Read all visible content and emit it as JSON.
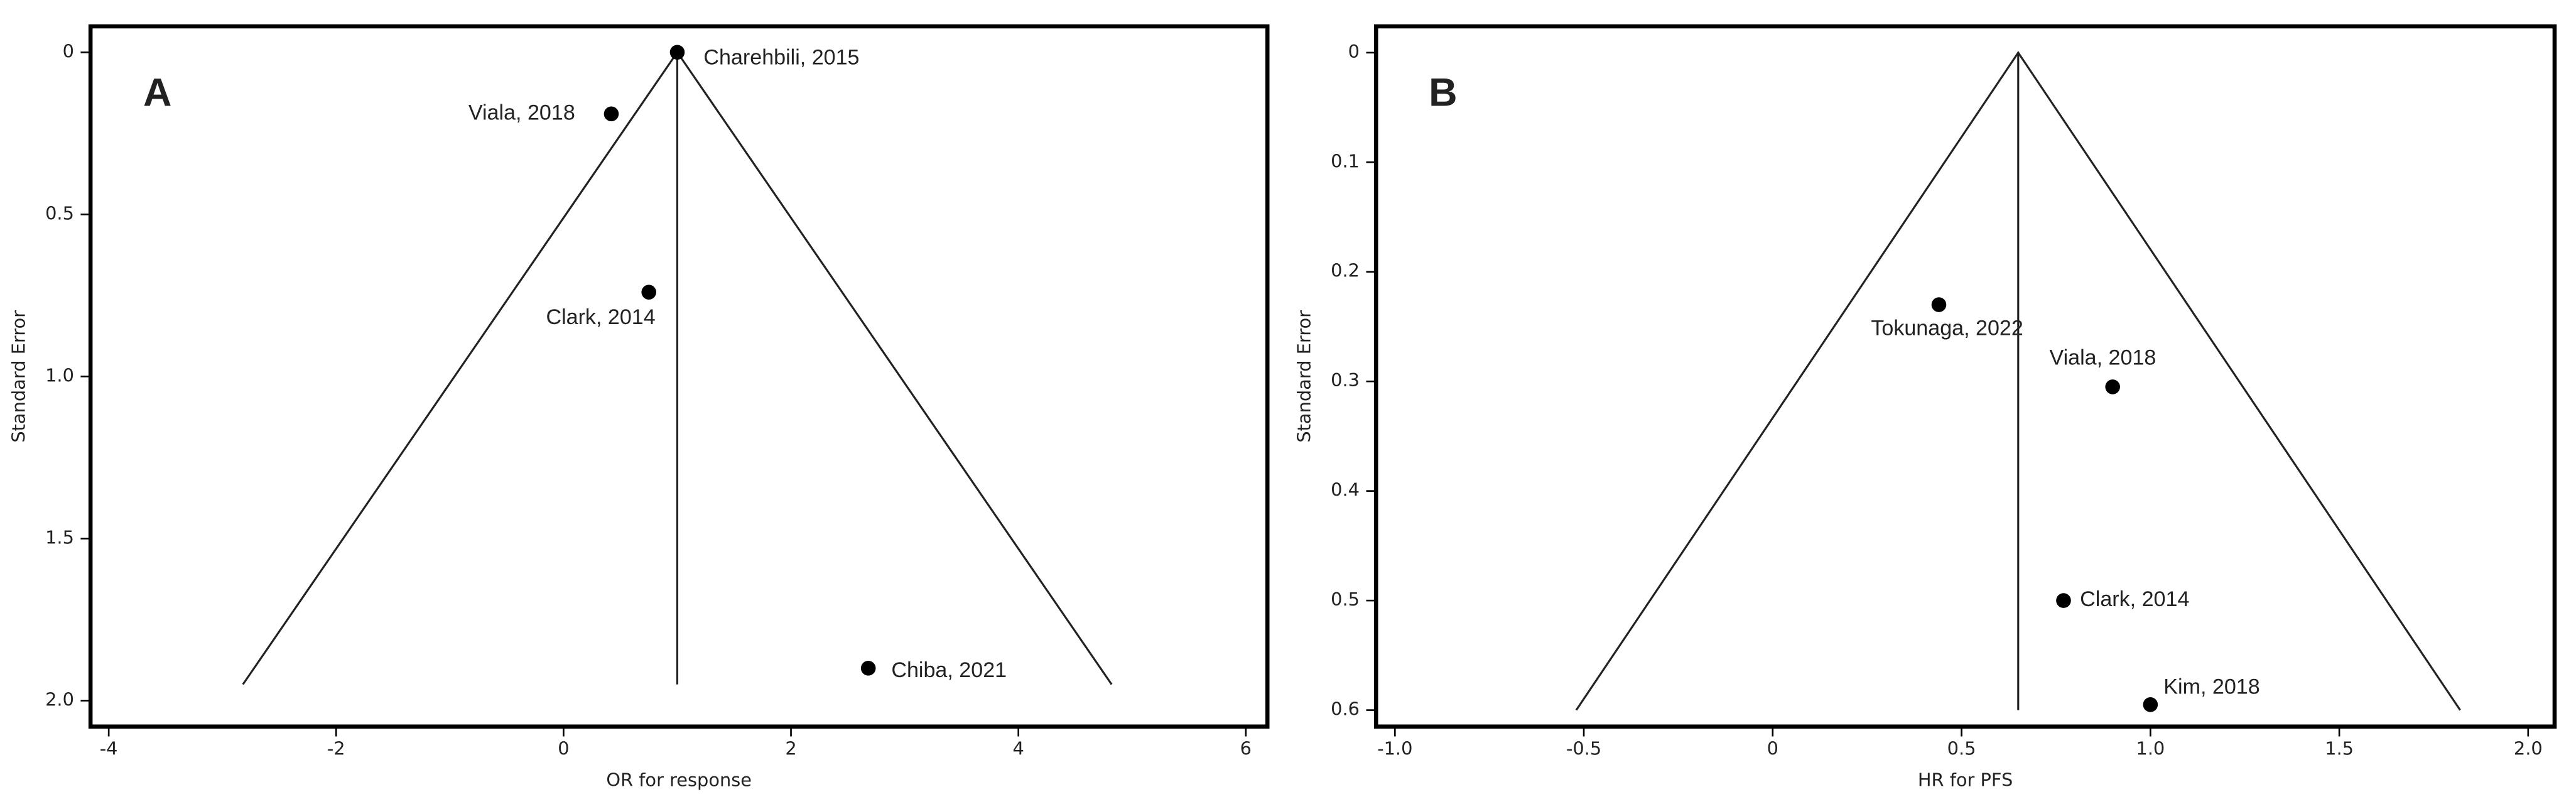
{
  "chart_data": [
    {
      "type": "scatter",
      "panel_label": "A",
      "x_label": "OR for response",
      "y_label": "Standard Error",
      "xlim": [
        -4.16,
        6.19
      ],
      "ylim": [
        -0.08,
        2.08
      ],
      "y_reversed": true,
      "color": "#000000",
      "xticks": [
        -4,
        -2,
        0,
        2,
        4,
        6
      ],
      "yticks": [
        0,
        0.5,
        {
          "value": 1,
          "label": "1.0"
        },
        1.5,
        {
          "value": 2,
          "label": "2.0"
        }
      ],
      "series": [
        {
          "names": [
            "Charehbili, 2015",
            "Viala, 2018",
            "Clark, 2014",
            "Chiba, 2021"
          ],
          "x": [
            1.0,
            0.42,
            0.75,
            2.68
          ],
          "values": [
            0.0,
            0.19,
            0.74,
            1.9
          ]
        }
      ],
      "funnel": {
        "x": [
          -2.82,
          1.0,
          4.82
        ],
        "y": [
          1.95,
          0,
          1.95
        ]
      },
      "summary": {
        "x": [
          1.0,
          1.0
        ],
        "y": [
          0,
          1.95
        ]
      }
    },
    {
      "type": "scatter",
      "panel_label": "B",
      "x_label": "HR for PFS",
      "y_label": "Standard Error",
      "xlim": [
        -1.05,
        2.07
      ],
      "ylim": [
        -0.024,
        0.615
      ],
      "y_reversed": true,
      "color": "#000000",
      "xticks": [
        {
          "value": -1,
          "label": "-1.0"
        },
        -0.5,
        0,
        0.5,
        {
          "value": 1,
          "label": "1.0"
        },
        1.5,
        {
          "value": 2,
          "label": "2.0"
        }
      ],
      "yticks": [
        0,
        0.1,
        0.2,
        0.3,
        0.4,
        0.5,
        0.6
      ],
      "series": [
        {
          "names": [
            "Tokunaga, 2022",
            "Viala, 2018",
            "Clark, 2014",
            "Kim, 2018"
          ],
          "x": [
            0.44,
            0.9,
            0.77,
            1.0
          ],
          "values": [
            0.23,
            0.305,
            0.5,
            0.595
          ]
        }
      ],
      "funnel": {
        "x": [
          -0.52,
          0.65,
          1.82
        ],
        "y": [
          0.6,
          0,
          0.6
        ]
      },
      "summary": {
        "x": [
          0.65,
          0.65
        ],
        "y": [
          0,
          0.6
        ]
      }
    }
  ]
}
